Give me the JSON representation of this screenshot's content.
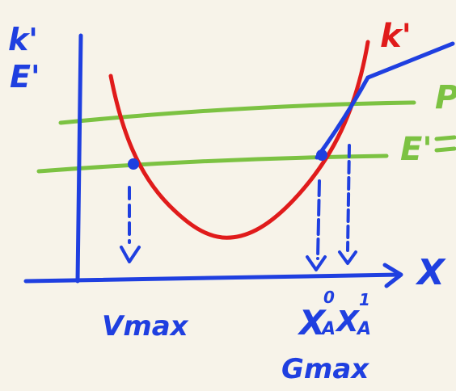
{
  "colors": {
    "background": "#f7f3e9",
    "axis": "#1f3fe0",
    "curve": "#e01b1b",
    "horizontal_lines": "#7cc242"
  },
  "labels": {
    "y_axis_top": "k'",
    "y_axis_bottom": "E'",
    "curve_label": "k'",
    "x_axis": "X",
    "green_label": "E'",
    "green_label_top_partial": "P",
    "v_max": "Vmax",
    "x_a0": "X",
    "x_a0_sub": "A",
    "x_a0_sup": "0",
    "x_a1": "X",
    "x_a1_sub": "A",
    "x_a1_sup": "1",
    "g_max": "Gmax"
  }
}
